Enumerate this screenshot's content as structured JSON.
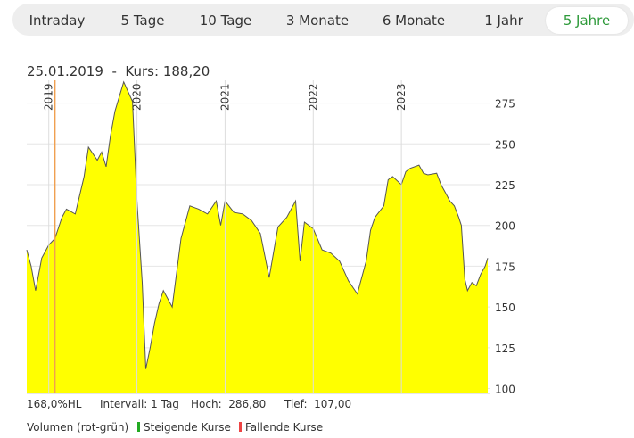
{
  "tabs": [
    {
      "label": "Intraday",
      "active": false
    },
    {
      "label": "5 Tage",
      "active": false
    },
    {
      "label": "10 Tage",
      "active": false
    },
    {
      "label": "3 Monate",
      "active": false
    },
    {
      "label": "6 Monate",
      "active": false
    },
    {
      "label": "1 Jahr",
      "active": false
    },
    {
      "label": "5 Jahre",
      "active": true
    }
  ],
  "colors": {
    "fill": "#ffff00",
    "line": "#555555",
    "marker": "#f0a050",
    "active_tab": "#2e9a3a",
    "rising": "#22aa22",
    "falling": "#ee4444"
  },
  "info": {
    "date": "25.01.2019",
    "separator": "-",
    "price_label": "Kurs:",
    "price": "188,20"
  },
  "stats": {
    "hl": "168,0%HL",
    "interval": "Intervall: 1 Tag",
    "high": "Hoch:  286,80",
    "low": "Tief:  107,00"
  },
  "legend": {
    "volume": "Volumen (rot-grün)",
    "rising": "Steigende Kurse",
    "falling": "Fallende Kurse"
  },
  "chart_data": {
    "type": "area",
    "x_ticks": [
      "2019",
      "2020",
      "2021",
      "2022",
      "2023"
    ],
    "y_ticks": [
      100,
      125,
      150,
      175,
      200,
      225,
      250,
      275
    ],
    "ylim": [
      97,
      289
    ],
    "xlim": [
      2018.75,
      2024.0
    ],
    "grid": true,
    "marker_date": "25.01.2019",
    "marker_x": 2019.07,
    "x": [
      2018.75,
      2018.8,
      2018.85,
      2018.92,
      2019.0,
      2019.07,
      2019.15,
      2019.2,
      2019.3,
      2019.4,
      2019.45,
      2019.55,
      2019.6,
      2019.65,
      2019.7,
      2019.75,
      2019.85,
      2019.95,
      2020.0,
      2020.06,
      2020.1,
      2020.15,
      2020.2,
      2020.25,
      2020.3,
      2020.35,
      2020.4,
      2020.5,
      2020.6,
      2020.7,
      2020.8,
      2020.9,
      2020.95,
      2021.0,
      2021.1,
      2021.2,
      2021.3,
      2021.4,
      2021.5,
      2021.6,
      2021.7,
      2021.8,
      2021.85,
      2021.9,
      2022.0,
      2022.1,
      2022.2,
      2022.3,
      2022.4,
      2022.5,
      2022.6,
      2022.65,
      2022.7,
      2022.8,
      2022.85,
      2022.9,
      2023.0,
      2023.05,
      2023.1,
      2023.2,
      2023.25,
      2023.3,
      2023.4,
      2023.45,
      2023.5,
      2023.55,
      2023.6,
      2023.65,
      2023.68,
      2023.72,
      2023.75,
      2023.8,
      2023.85,
      2023.9,
      2023.95,
      2023.98
    ],
    "y": [
      185,
      175,
      160,
      180,
      188,
      192,
      205,
      210,
      207,
      230,
      248,
      240,
      245,
      236,
      255,
      270,
      288,
      276,
      215,
      165,
      112,
      125,
      140,
      152,
      160,
      155,
      150,
      192,
      212,
      210,
      207,
      215,
      200,
      215,
      208,
      207,
      203,
      195,
      168,
      199,
      205,
      215,
      178,
      202,
      198,
      185,
      183,
      178,
      166,
      158,
      178,
      197,
      205,
      212,
      228,
      230,
      225,
      233,
      235,
      237,
      232,
      231,
      232,
      225,
      220,
      215,
      212,
      205,
      200,
      167,
      160,
      165,
      163,
      170,
      175,
      180
    ]
  }
}
